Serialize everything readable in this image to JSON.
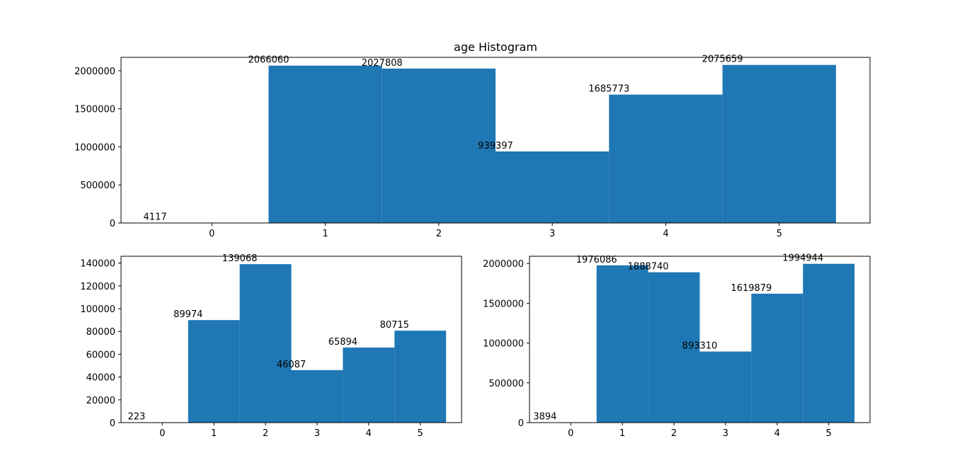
{
  "chart_data": [
    {
      "type": "bar",
      "title": "age Histogram",
      "categories": [
        "0",
        "1",
        "2",
        "3",
        "4",
        "5"
      ],
      "values": [
        4117,
        2066060,
        2027808,
        939397,
        1685773,
        2075659
      ],
      "data_labels": [
        "4117",
        "2066060",
        "2027808",
        "939397",
        "1685773",
        "2075659"
      ],
      "xlim": [
        -0.8,
        5.8
      ],
      "ylim": [
        0,
        2175000
      ],
      "x_ticks": [
        "0",
        "1",
        "2",
        "3",
        "4",
        "5"
      ],
      "y_ticks": [
        "0",
        "500000",
        "1000000",
        "1500000",
        "2000000"
      ],
      "color": "#1f77b4",
      "grid": false
    },
    {
      "type": "bar",
      "title": "",
      "categories": [
        "0",
        "1",
        "2",
        "3",
        "4",
        "5"
      ],
      "values": [
        223,
        89974,
        139068,
        46087,
        65894,
        80715
      ],
      "data_labels": [
        "223",
        "89974",
        "139068",
        "46087",
        "65894",
        "80715"
      ],
      "xlim": [
        -0.8,
        5.8
      ],
      "ylim": [
        0,
        146000
      ],
      "x_ticks": [
        "0",
        "1",
        "2",
        "3",
        "4",
        "5"
      ],
      "y_ticks": [
        "0",
        "20000",
        "40000",
        "60000",
        "80000",
        "100000",
        "120000",
        "140000"
      ],
      "color": "#1f77b4",
      "grid": false
    },
    {
      "type": "bar",
      "title": "",
      "categories": [
        "0",
        "1",
        "2",
        "3",
        "4",
        "5"
      ],
      "values": [
        3894,
        1976086,
        1888740,
        893310,
        1619879,
        1994944
      ],
      "data_labels": [
        "3894",
        "1976086",
        "1888740",
        "893310",
        "1619879",
        "1994944"
      ],
      "xlim": [
        -0.8,
        5.8
      ],
      "ylim": [
        0,
        2090000
      ],
      "x_ticks": [
        "0",
        "1",
        "2",
        "3",
        "4",
        "5"
      ],
      "y_ticks": [
        "0",
        "500000",
        "1000000",
        "1500000",
        "2000000"
      ],
      "color": "#1f77b4",
      "grid": false
    }
  ]
}
